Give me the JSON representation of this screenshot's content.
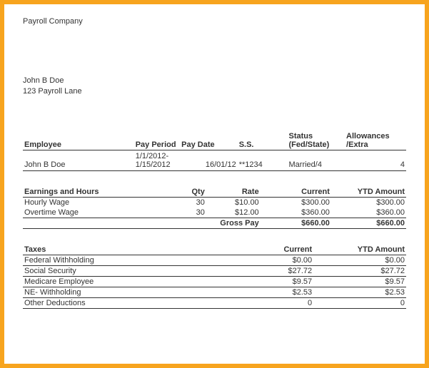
{
  "colors": {
    "border": "#f7a41e",
    "text": "#333333",
    "background": "#ffffff",
    "rule": "#333333"
  },
  "typography": {
    "base_font_size_pt": 8,
    "font_family": "Arial"
  },
  "company": "Payroll Company",
  "employee_block": {
    "name": "John B Doe",
    "address": "123 Payroll Lane"
  },
  "emp_table": {
    "headers": {
      "employee": "Employee",
      "pay_period": "Pay Period",
      "pay_date": "Pay Date",
      "ss": "S.S.",
      "status": "Status (Fed/State)",
      "status_l1": "Status",
      "status_l2": "(Fed/State)",
      "allowances": "Allowances /Extra",
      "allowances_l1": "Allowances",
      "allowances_l2": "/Extra"
    },
    "row": {
      "employee": "John B Doe",
      "pay_period_l1": "1/1/2012-",
      "pay_period_l2": "1/15/2012",
      "pay_date": "16/01/12",
      "ss": "**1234",
      "status": "Married/4",
      "allowances": "4"
    }
  },
  "earnings": {
    "headers": {
      "title": "Earnings and Hours",
      "qty": "Qty",
      "rate": "Rate",
      "current": "Current",
      "ytd": "YTD Amount"
    },
    "rows": [
      {
        "label": "Hourly Wage",
        "qty": "30",
        "rate": "$10.00",
        "current": "$300.00",
        "ytd": "$300.00"
      },
      {
        "label": "Overtime Wage",
        "qty": "30",
        "rate": "$12.00",
        "current": "$360.00",
        "ytd": "$360.00"
      }
    ],
    "gross": {
      "label": "Gross Pay",
      "current": "$660.00",
      "ytd": "$660.00"
    }
  },
  "taxes": {
    "headers": {
      "title": "Taxes",
      "current": "Current",
      "ytd": "YTD Amount"
    },
    "rows": [
      {
        "label": "Federal Withholding",
        "current": "$0.00",
        "ytd": "$0.00"
      },
      {
        "label": "Social Security",
        "current": "$27.72",
        "ytd": "$27.72"
      },
      {
        "label": "Medicare Employee",
        "current": "$9.57",
        "ytd": "$9.57"
      },
      {
        "label": "NE- Withholding",
        "current": "$2.53",
        "ytd": "$2.53"
      },
      {
        "label": "Other Deductions",
        "current": "0",
        "ytd": "0"
      }
    ]
  }
}
